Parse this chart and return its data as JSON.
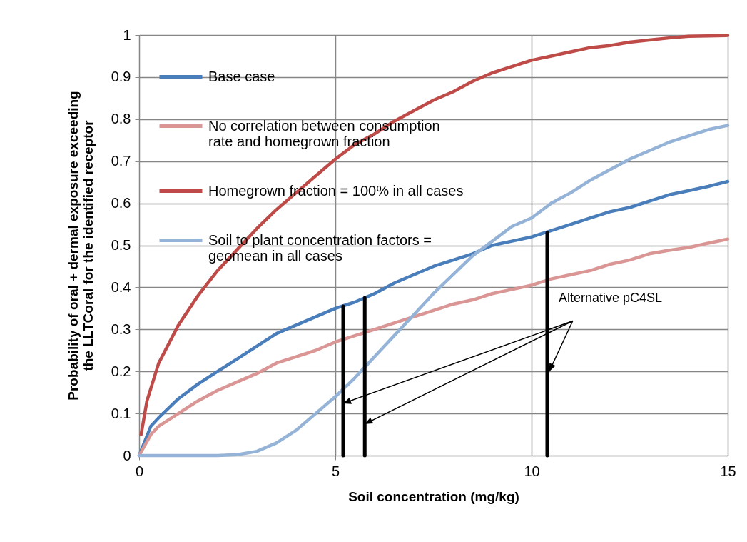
{
  "chart_data": {
    "type": "line",
    "xlabel": "Soil concentration  (mg/kg)",
    "ylabel": "Probability of oral + dermal exposure exceeding the LLTCoral  for the identified receptor",
    "xlim": [
      0,
      15
    ],
    "xticks": [
      0,
      5,
      10,
      15
    ],
    "ylim": [
      0,
      1
    ],
    "yticks": [
      0,
      0.1,
      0.2,
      0.3,
      0.4,
      0.5,
      0.6,
      0.7,
      0.8,
      0.9,
      1
    ],
    "grid": true,
    "legend": "top left",
    "annotations": [
      {
        "text": "Alternative pC4SL",
        "x": 10.45,
        "y": 0.2
      }
    ],
    "series": [
      {
        "name": "Base case",
        "color": "#4a7ebb",
        "x": [
          0,
          0.3,
          0.5,
          1,
          1.5,
          2,
          2.5,
          3,
          3.5,
          4,
          4.5,
          5,
          5.5,
          6,
          6.5,
          7,
          7.5,
          8,
          8.5,
          9,
          9.5,
          10,
          10.5,
          11,
          11.5,
          12,
          12.5,
          13,
          13.5,
          14,
          14.5,
          15
        ],
        "values": [
          0,
          0.07,
          0.09,
          0.135,
          0.17,
          0.2,
          0.23,
          0.26,
          0.29,
          0.31,
          0.33,
          0.35,
          0.365,
          0.385,
          0.41,
          0.43,
          0.45,
          0.465,
          0.48,
          0.5,
          0.51,
          0.52,
          0.535,
          0.55,
          0.565,
          0.58,
          0.59,
          0.605,
          0.62,
          0.63,
          0.64,
          0.652
        ]
      },
      {
        "name": "No correlation between consumption rate and homegrown fraction",
        "color": "#d99694",
        "x": [
          0,
          0.3,
          0.5,
          1,
          1.5,
          2,
          2.5,
          3,
          3.5,
          4,
          4.5,
          5,
          5.5,
          6,
          6.5,
          7,
          7.5,
          8,
          8.5,
          9,
          9.5,
          10,
          10.5,
          11,
          11.5,
          12,
          12.5,
          13,
          13.5,
          14,
          14.5,
          15
        ],
        "values": [
          0,
          0.05,
          0.07,
          0.1,
          0.13,
          0.155,
          0.175,
          0.195,
          0.22,
          0.235,
          0.25,
          0.27,
          0.285,
          0.3,
          0.315,
          0.33,
          0.345,
          0.36,
          0.37,
          0.385,
          0.395,
          0.405,
          0.42,
          0.43,
          0.44,
          0.455,
          0.465,
          0.48,
          0.488,
          0.495,
          0.505,
          0.515
        ]
      },
      {
        "name": "Homegrown fraction = 100% in all cases",
        "color": "#be4b48",
        "x": [
          0.05,
          0.2,
          0.5,
          1,
          1.5,
          2,
          2.5,
          3,
          3.5,
          4,
          4.5,
          5,
          5.5,
          6,
          6.5,
          7,
          7.5,
          8,
          8.5,
          9,
          9.5,
          10,
          10.5,
          11,
          11.5,
          12,
          12.5,
          13,
          13.5,
          14,
          14.5,
          15
        ],
        "values": [
          0.05,
          0.13,
          0.22,
          0.31,
          0.38,
          0.44,
          0.49,
          0.54,
          0.585,
          0.625,
          0.665,
          0.705,
          0.74,
          0.765,
          0.795,
          0.82,
          0.845,
          0.865,
          0.89,
          0.91,
          0.925,
          0.94,
          0.95,
          0.96,
          0.97,
          0.975,
          0.983,
          0.988,
          0.993,
          0.997,
          0.998,
          0.999
        ]
      },
      {
        "name": "Soil to plant concentration factors = geomean in all cases",
        "color": "#95b3d7",
        "x": [
          0,
          1,
          2,
          2.5,
          3,
          3.5,
          4,
          4.5,
          5,
          5.5,
          6,
          6.5,
          7,
          7.5,
          8,
          8.5,
          9,
          9.5,
          10,
          10.5,
          11,
          11.5,
          12,
          12.5,
          13,
          13.5,
          14,
          14.5,
          15
        ],
        "values": [
          0,
          0,
          0,
          0.002,
          0.01,
          0.03,
          0.06,
          0.1,
          0.14,
          0.185,
          0.235,
          0.285,
          0.335,
          0.385,
          0.43,
          0.475,
          0.51,
          0.545,
          0.565,
          0.6,
          0.625,
          0.655,
          0.68,
          0.705,
          0.725,
          0.745,
          0.76,
          0.775,
          0.785
        ]
      },
      {
        "color": "#000000",
        "x": [
          5.2,
          5.2
        ],
        "values": [
          0,
          0.355
        ]
      },
      {
        "color": "#000000",
        "x": [
          5.75,
          5.75
        ],
        "values": [
          0,
          0.375
        ]
      },
      {
        "color": "#000000",
        "x": [
          10.4,
          10.4
        ],
        "values": [
          0,
          0.53
        ]
      }
    ]
  }
}
